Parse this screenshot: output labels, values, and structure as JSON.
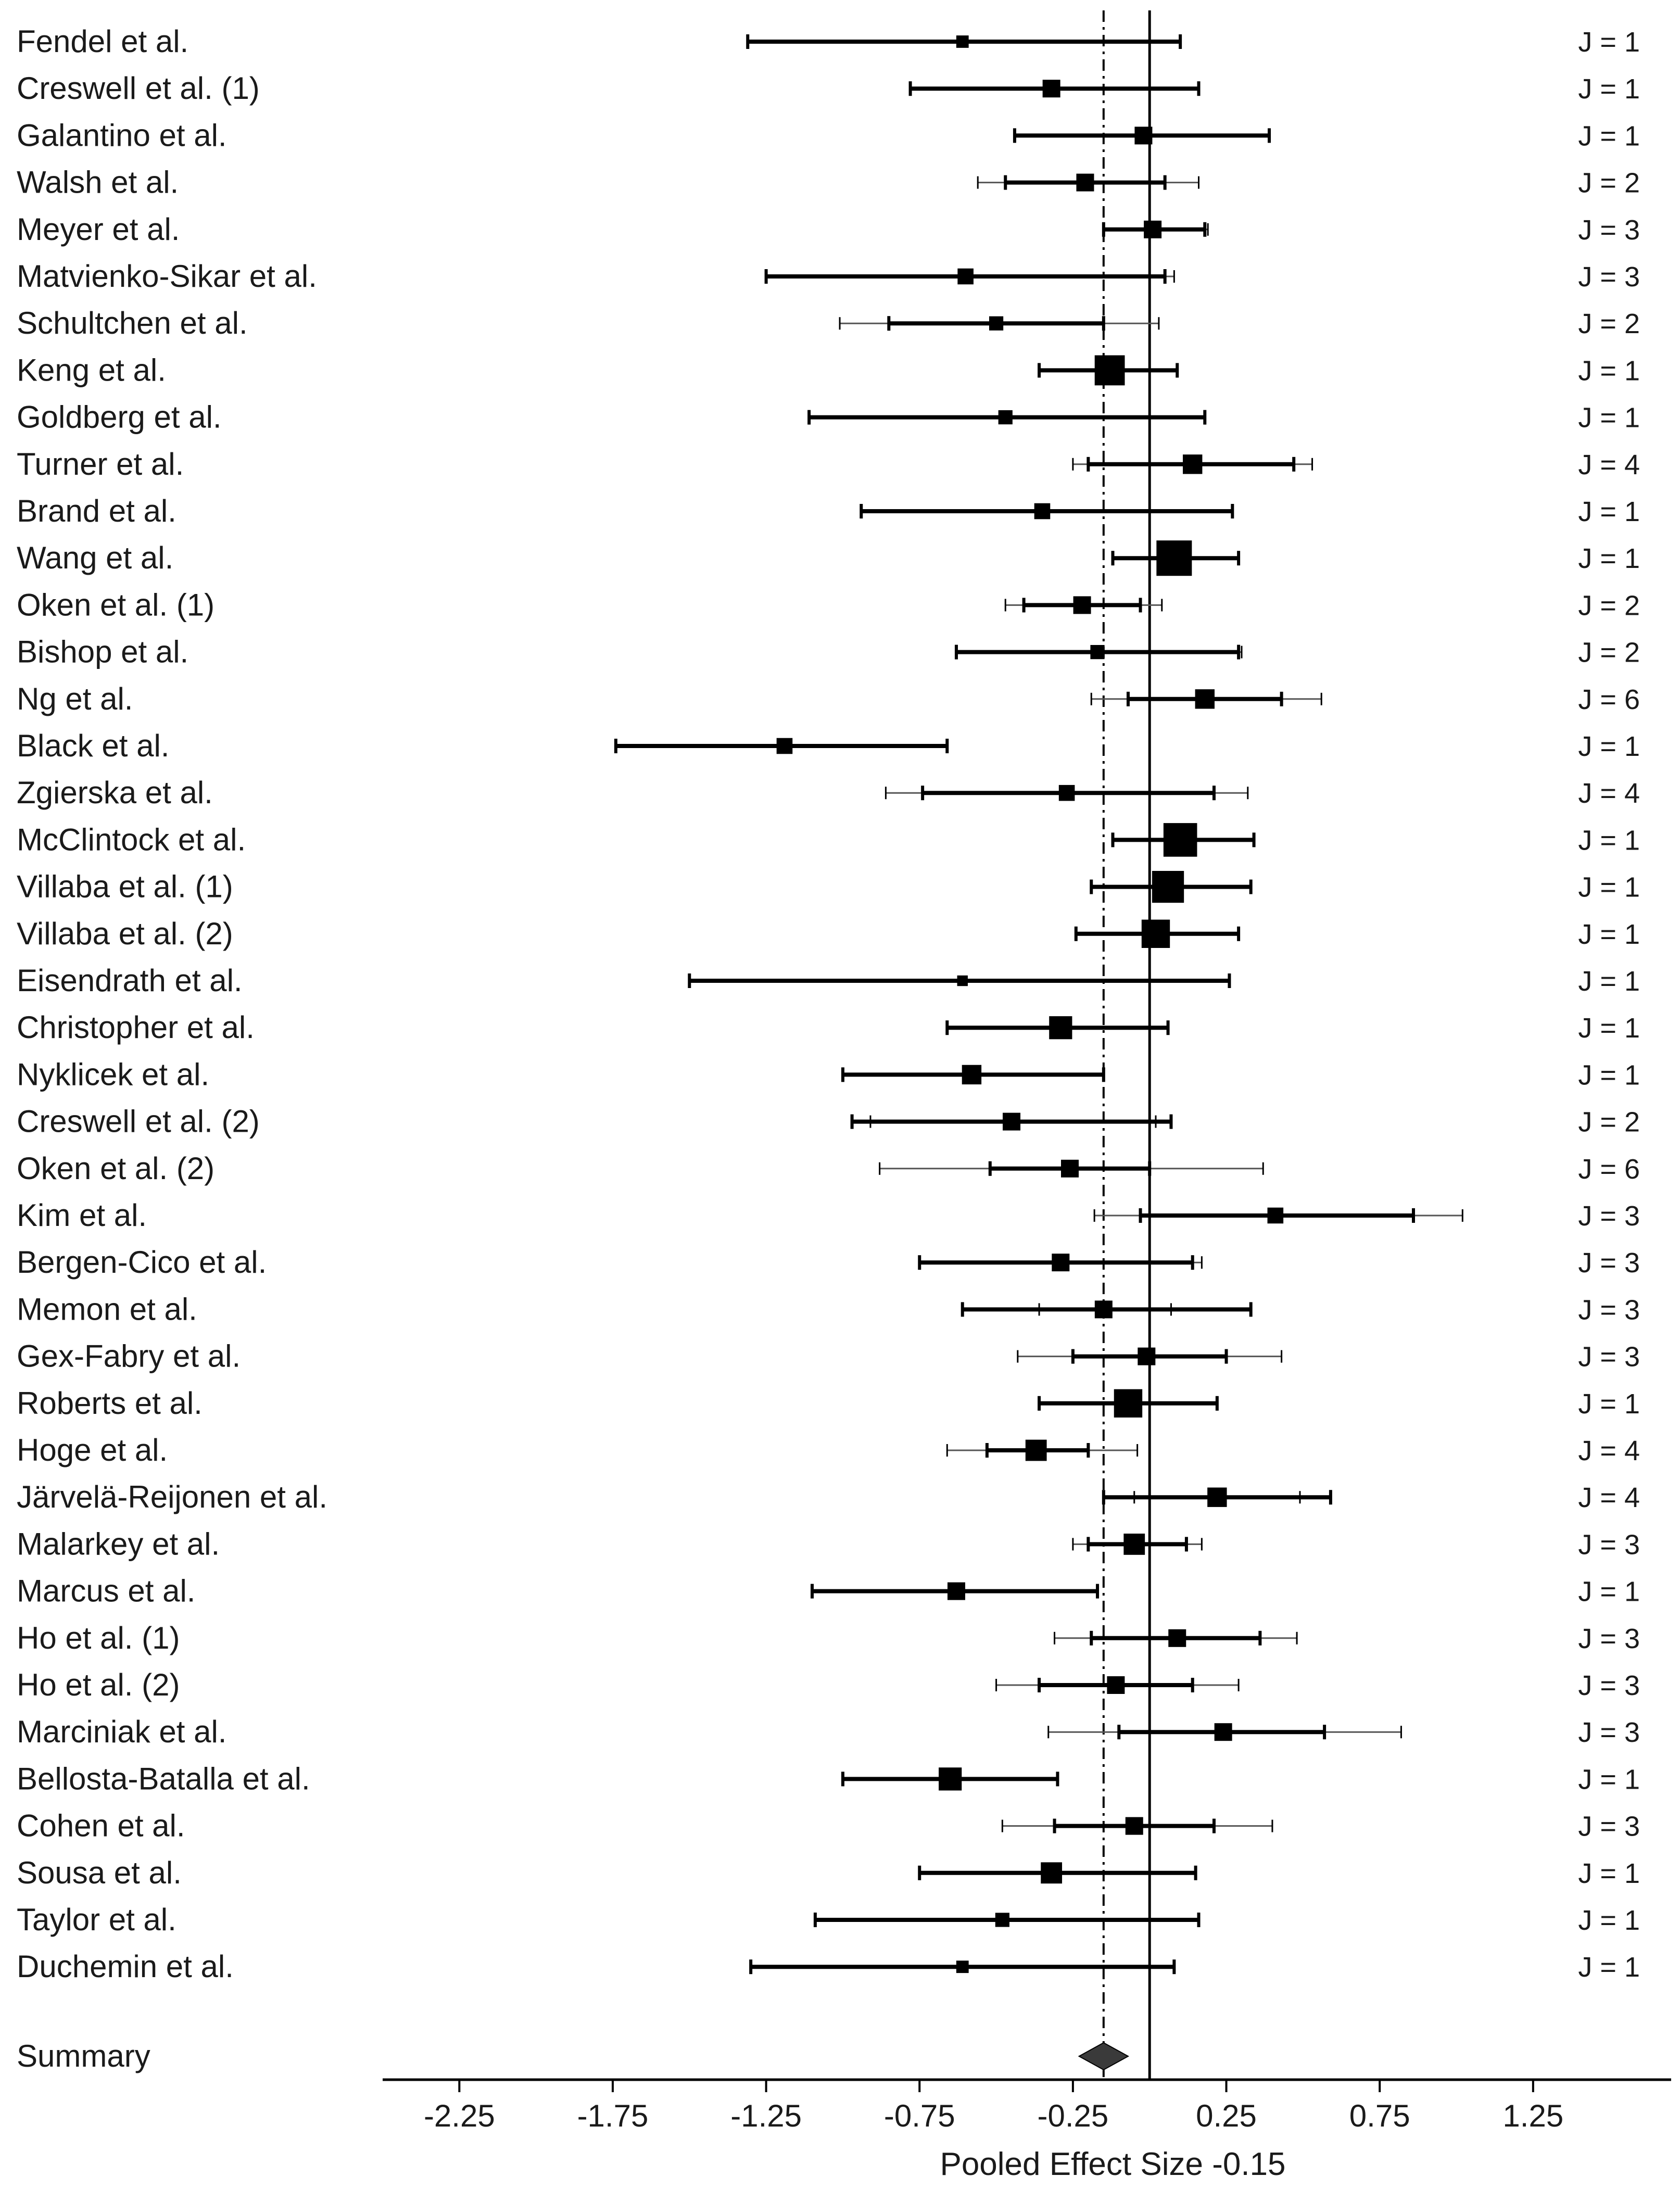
{
  "chart_data": {
    "type": "forest",
    "xlabel": "Pooled Effect Size -0.15",
    "pooled_effect": -0.15,
    "null_line": 0,
    "xlim": [
      -2.5,
      1.7
    ],
    "x_ticks": [
      -2.25,
      -1.75,
      -1.25,
      -0.75,
      -0.25,
      0.25,
      0.75,
      1.25
    ],
    "x_tick_labels": [
      "-2.25",
      "-1.75",
      "-1.25",
      "-0.75",
      "-0.25",
      "0.25",
      "0.75",
      "1.25"
    ],
    "studies": [
      {
        "label": "Fendel et al.",
        "j": "J = 1",
        "est": -0.61,
        "lo": -1.31,
        "hi": 0.1,
        "w": 0.7
      },
      {
        "label": "Creswell et al. (1)",
        "j": "J = 1",
        "est": -0.32,
        "lo": -0.78,
        "hi": 0.16,
        "w": 1.0
      },
      {
        "label": "Galantino et al.",
        "j": "J = 1",
        "est": -0.02,
        "lo": -0.44,
        "hi": 0.39,
        "w": 1.0
      },
      {
        "label": "Walsh et al.",
        "j": "J = 2",
        "est": -0.21,
        "lo": -0.47,
        "hi": 0.05,
        "lo2": -0.56,
        "hi2": 0.16,
        "w": 1.0
      },
      {
        "label": "Meyer et al.",
        "j": "J = 3",
        "est": 0.01,
        "lo": -0.15,
        "hi": 0.18,
        "lo2": -0.15,
        "hi2": 0.19,
        "w": 1.0
      },
      {
        "label": "Matvienko-Sikar et al.",
        "j": "J = 3",
        "est": -0.6,
        "lo": -1.25,
        "hi": 0.05,
        "lo2": -1.25,
        "hi2": 0.08,
        "w": 0.9
      },
      {
        "label": "Schultchen et al.",
        "j": "J = 2",
        "est": -0.5,
        "lo": -0.85,
        "hi": -0.15,
        "lo2": -1.01,
        "hi2": 0.03,
        "w": 0.8
      },
      {
        "label": "Keng et al.",
        "j": "J = 1",
        "est": -0.13,
        "lo": -0.36,
        "hi": 0.09,
        "w": 1.7
      },
      {
        "label": "Goldberg et al.",
        "j": "J = 1",
        "est": -0.47,
        "lo": -1.11,
        "hi": 0.18,
        "w": 0.8
      },
      {
        "label": "Turner et al.",
        "j": "J = 4",
        "est": 0.14,
        "lo": -0.2,
        "hi": 0.47,
        "lo2": -0.25,
        "hi2": 0.53,
        "w": 1.1
      },
      {
        "label": "Brand et al.",
        "j": "J = 1",
        "est": -0.35,
        "lo": -0.94,
        "hi": 0.27,
        "w": 0.9
      },
      {
        "label": "Wang et  al.",
        "j": "J = 1",
        "est": 0.08,
        "lo": -0.12,
        "hi": 0.29,
        "w": 2.0
      },
      {
        "label": "Oken et al. (1)",
        "j": "J = 2",
        "est": -0.22,
        "lo": -0.41,
        "hi": -0.03,
        "lo2": -0.47,
        "hi2": 0.04,
        "w": 1.0
      },
      {
        "label": "Bishop et al.",
        "j": "J = 2",
        "est": -0.17,
        "lo": -0.63,
        "hi": 0.29,
        "lo2": -0.63,
        "hi2": 0.3,
        "w": 0.8
      },
      {
        "label": "Ng et al.",
        "j": "J = 6",
        "est": 0.18,
        "lo": -0.07,
        "hi": 0.43,
        "lo2": -0.19,
        "hi2": 0.56,
        "w": 1.1
      },
      {
        "label": "Black et al.",
        "j": "J = 1",
        "est": -1.19,
        "lo": -1.74,
        "hi": -0.66,
        "w": 0.9
      },
      {
        "label": "Zgierska et al.",
        "j": "J = 4",
        "est": -0.27,
        "lo": -0.74,
        "hi": 0.21,
        "lo2": -0.86,
        "hi2": 0.32,
        "w": 0.9
      },
      {
        "label": "McClintock et al.",
        "j": "J = 1",
        "est": 0.1,
        "lo": -0.12,
        "hi": 0.34,
        "w": 1.9
      },
      {
        "label": "Villaba et al. (1)",
        "j": "J = 1",
        "est": 0.06,
        "lo": -0.19,
        "hi": 0.33,
        "w": 1.8
      },
      {
        "label": "Villaba et al. (2)",
        "j": "J = 1",
        "est": 0.02,
        "lo": -0.24,
        "hi": 0.29,
        "w": 1.6
      },
      {
        "label": "Eisendrath et al.",
        "j": "J = 1",
        "est": -0.61,
        "lo": -1.5,
        "hi": 0.26,
        "w": 0.6
      },
      {
        "label": "Christopher et al.",
        "j": "J = 1",
        "est": -0.29,
        "lo": -0.66,
        "hi": 0.06,
        "w": 1.3
      },
      {
        "label": "Nyklicek et al.",
        "j": "J = 1",
        "est": -0.58,
        "lo": -1.0,
        "hi": -0.15,
        "w": 1.1
      },
      {
        "label": "Creswell et al. (2)",
        "j": "J = 2",
        "est": -0.45,
        "lo": -0.97,
        "hi": 0.07,
        "lo2": -0.91,
        "hi2": 0.02,
        "w": 1.0
      },
      {
        "label": "Oken et al. (2)",
        "j": "J = 6",
        "est": -0.26,
        "lo": -0.52,
        "hi": 0.0,
        "lo2": -0.88,
        "hi2": 0.37,
        "w": 1.0
      },
      {
        "label": "Kim et al.",
        "j": "J = 3",
        "est": 0.41,
        "lo": -0.03,
        "hi": 0.86,
        "lo2": -0.18,
        "hi2": 1.02,
        "w": 0.9
      },
      {
        "label": "Bergen-Cico et al.",
        "j": "J = 3",
        "est": -0.29,
        "lo": -0.75,
        "hi": 0.14,
        "lo2": -0.75,
        "hi2": 0.17,
        "w": 1.0
      },
      {
        "label": "Memon et al.",
        "j": "J = 3",
        "est": -0.15,
        "lo": -0.61,
        "hi": 0.33,
        "lo2": -0.36,
        "hi2": 0.07,
        "w": 1.0
      },
      {
        "label": "Gex-Fabry et al.",
        "j": "J = 3",
        "est": -0.01,
        "lo": -0.25,
        "hi": 0.25,
        "lo2": -0.43,
        "hi2": 0.43,
        "w": 1.0
      },
      {
        "label": "Roberts et al.",
        "j": "J = 1",
        "est": -0.07,
        "lo": -0.36,
        "hi": 0.22,
        "w": 1.6
      },
      {
        "label": "Hoge et al.",
        "j": "J = 4",
        "est": -0.37,
        "lo": -0.53,
        "hi": -0.2,
        "lo2": -0.66,
        "hi2": -0.04,
        "w": 1.2
      },
      {
        "label": "Järvelä-Reijonen et al.",
        "j": "J = 4",
        "est": 0.22,
        "lo": -0.15,
        "hi": 0.59,
        "lo2": -0.05,
        "hi2": 0.49,
        "w": 1.1
      },
      {
        "label": "Malarkey et al.",
        "j": "J = 3",
        "est": -0.05,
        "lo": -0.2,
        "hi": 0.12,
        "lo2": -0.25,
        "hi2": 0.17,
        "w": 1.2
      },
      {
        "label": "Marcus et al.",
        "j": "J = 1",
        "est": -0.63,
        "lo": -1.1,
        "hi": -0.17,
        "w": 1.0
      },
      {
        "label": "Ho et al. (1)",
        "j": "J = 3",
        "est": 0.09,
        "lo": -0.19,
        "hi": 0.36,
        "lo2": -0.31,
        "hi2": 0.48,
        "w": 1.0
      },
      {
        "label": "Ho et al. (2)",
        "j": "J = 3",
        "est": -0.11,
        "lo": -0.36,
        "hi": 0.14,
        "lo2": -0.5,
        "hi2": 0.29,
        "w": 1.0
      },
      {
        "label": "Marciniak et al.",
        "j": "J = 3",
        "est": 0.24,
        "lo": -0.1,
        "hi": 0.57,
        "lo2": -0.33,
        "hi2": 0.82,
        "w": 1.0
      },
      {
        "label": "Bellosta-Batalla et al.",
        "j": "J = 1",
        "est": -0.65,
        "lo": -1.0,
        "hi": -0.3,
        "w": 1.3
      },
      {
        "label": "Cohen et al.",
        "j": "J = 3",
        "est": -0.05,
        "lo": -0.31,
        "hi": 0.21,
        "lo2": -0.48,
        "hi2": 0.4,
        "w": 1.0
      },
      {
        "label": "Sousa et al.",
        "j": "J = 1",
        "est": -0.32,
        "lo": -0.75,
        "hi": 0.15,
        "w": 1.2
      },
      {
        "label": "Taylor et al.",
        "j": "J = 1",
        "est": -0.48,
        "lo": -1.09,
        "hi": 0.16,
        "w": 0.8
      },
      {
        "label": "Duchemin et al.",
        "j": "J = 1",
        "est": -0.61,
        "lo": -1.3,
        "hi": 0.08,
        "w": 0.7
      }
    ],
    "summary": {
      "label": "Summary",
      "est": -0.15,
      "lo": -0.23,
      "hi": -0.07
    }
  }
}
